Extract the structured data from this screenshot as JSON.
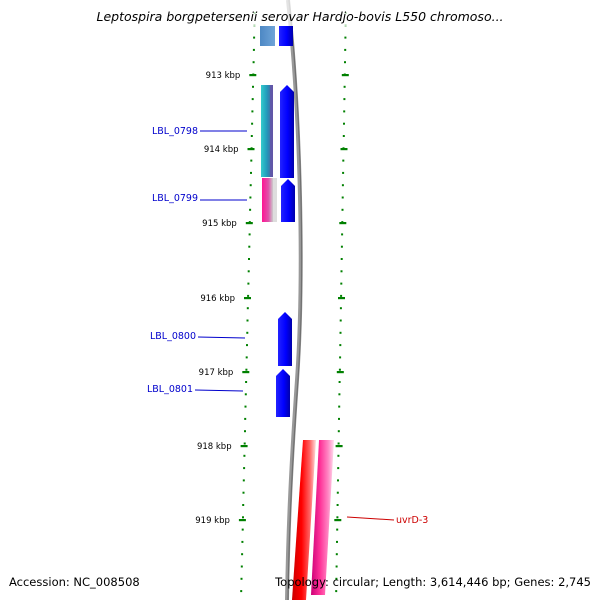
{
  "title": "Leptospira borgpetersenii serovar Hardjo-bovis L550 chromoso...",
  "footer": {
    "accession": "Accession: NC_008508",
    "topology": "Topology: circular; Length: 3,614,446 bp; Genes: 2,745"
  },
  "colors": {
    "tick": "#008000",
    "tick_label": "#000000",
    "backbone": "#808080",
    "gene_label_forward": "#0000cc",
    "gene_label_reverse": "#cc0000",
    "blue_gene": "#0000ff",
    "red_gene": "#ff0000",
    "pink_gene": "#ff3399"
  },
  "ticks": [
    {
      "label": "913 kbp"
    },
    {
      "label": "914 kbp"
    },
    {
      "label": "915 kbp"
    },
    {
      "label": "916 kbp"
    },
    {
      "label": "917 kbp"
    },
    {
      "label": "918 kbp"
    },
    {
      "label": "919 kbp"
    }
  ],
  "genes": [
    {
      "label": "LBL_0798",
      "strand": "forward"
    },
    {
      "label": "LBL_0799",
      "strand": "forward"
    },
    {
      "label": "LBL_0800",
      "strand": "forward"
    },
    {
      "label": "LBL_0801",
      "strand": "forward"
    },
    {
      "label": "uvrD-3",
      "strand": "reverse"
    }
  ]
}
